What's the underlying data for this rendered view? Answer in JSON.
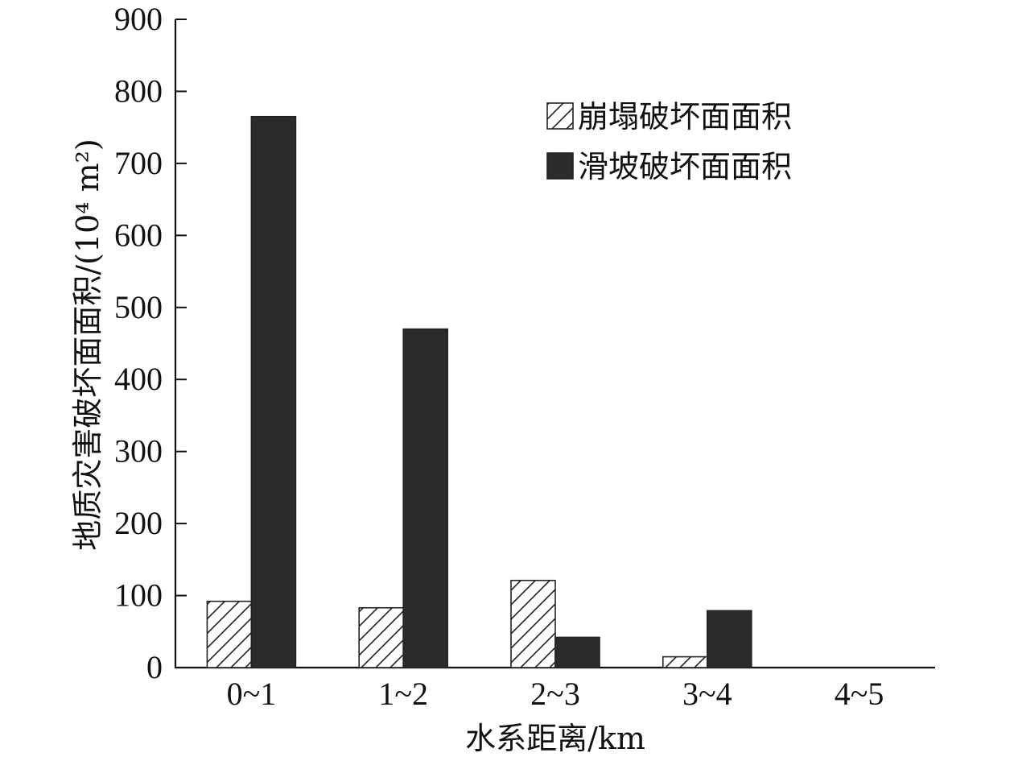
{
  "chart_data": {
    "type": "bar",
    "title": "",
    "xlabel": "水系距离/km",
    "ylabel": "地质灾害破坏面面积/(10⁴ m²)",
    "categories": [
      "0~1",
      "1~2",
      "2~3",
      "3~4",
      "4~5"
    ],
    "series": [
      {
        "name": "崩塌破坏面面积",
        "values": [
          92,
          83,
          121,
          15,
          0
        ],
        "fill": "hatch"
      },
      {
        "name": "滑坡破坏面面积",
        "values": [
          765,
          470,
          42,
          79,
          0
        ],
        "fill": "#2b2b2b"
      }
    ],
    "ylim": [
      0,
      900
    ],
    "yticks": [
      0,
      100,
      200,
      300,
      400,
      500,
      600,
      700,
      800,
      900
    ],
    "grid": false,
    "legend_position": "top-right"
  }
}
